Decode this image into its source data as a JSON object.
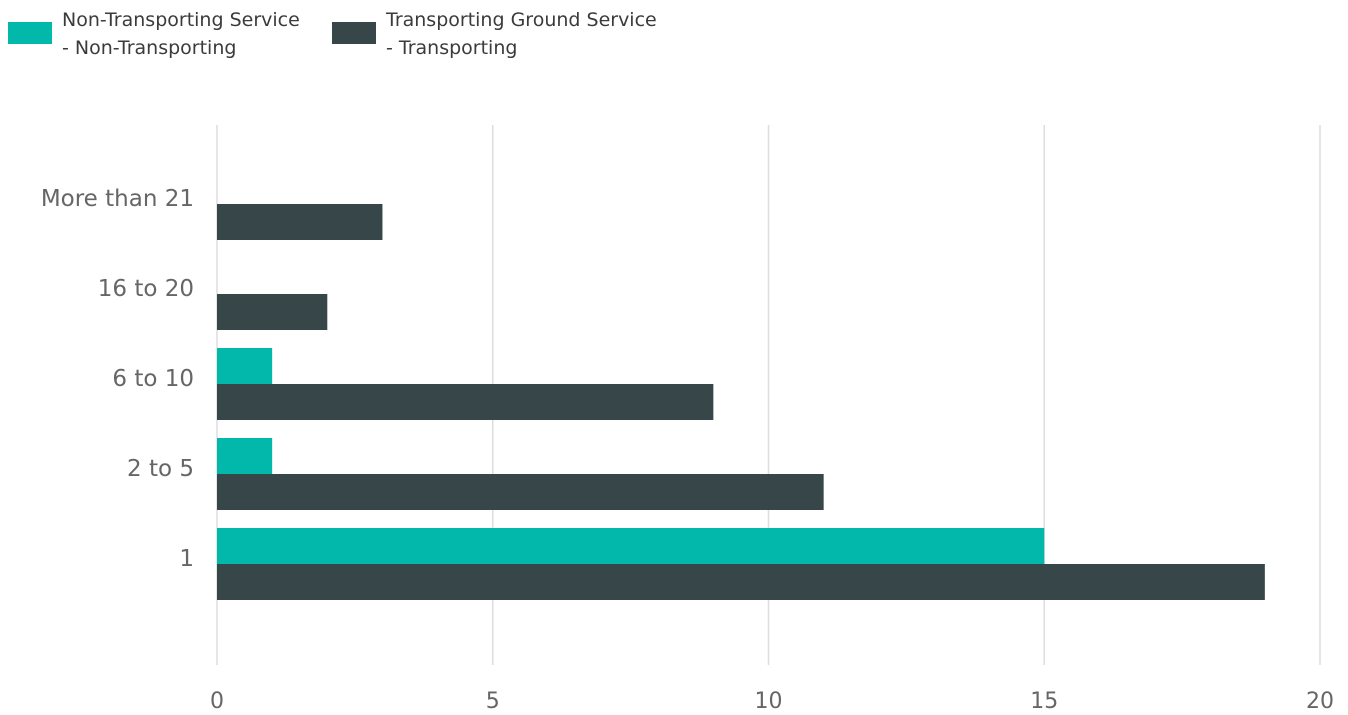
{
  "chart_data": {
    "type": "bar",
    "orientation": "horizontal",
    "categories": [
      "More than 21",
      "16 to 20",
      "6 to 10",
      "2 to 5",
      "1"
    ],
    "series": [
      {
        "name": "Non-Transporting Service - Non-Transporting",
        "legend_lines": [
          "Non-Transporting Service",
          "- Non-Transporting"
        ],
        "color": "#01b8aa",
        "values": [
          0,
          0,
          1,
          1,
          15
        ]
      },
      {
        "name": "Transporting Ground Service - Transporting",
        "legend_lines": [
          "Transporting Ground Service",
          "- Transporting"
        ],
        "color": "#374649",
        "values": [
          3,
          2,
          9,
          11,
          19
        ]
      }
    ],
    "xlim": [
      0,
      20
    ],
    "xticks": [
      0,
      5,
      10,
      15,
      20
    ],
    "xlabel": "",
    "ylabel": "",
    "title": "",
    "grid": "vertical",
    "legend_position": "top-left"
  }
}
